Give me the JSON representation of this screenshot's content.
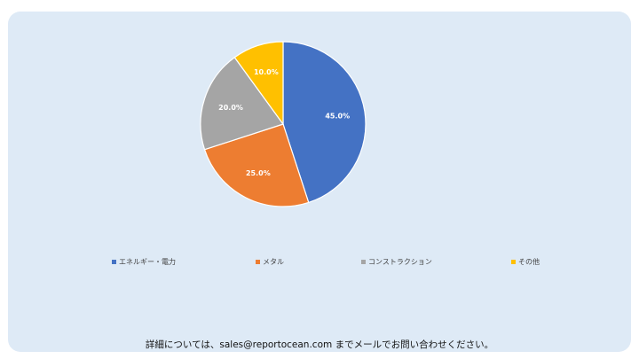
{
  "chart_data": {
    "type": "pie",
    "categories": [
      "エネルギー・電力",
      "メタル",
      "コンストラクション",
      "その他"
    ],
    "values": [
      45.0,
      25.0,
      20.0,
      10.0
    ],
    "labels": [
      "45.0%",
      "25.0%",
      "20.0%",
      "10.0%"
    ],
    "colors": [
      "#4472c4",
      "#ed7d31",
      "#a5a5a5",
      "#ffc000"
    ],
    "start_angle": "12 o'clock",
    "direction": "clockwise",
    "legend_position": "bottom"
  },
  "footer": {
    "text": "詳細については、sales@reportocean.com までメールでお問い合わせください。"
  }
}
